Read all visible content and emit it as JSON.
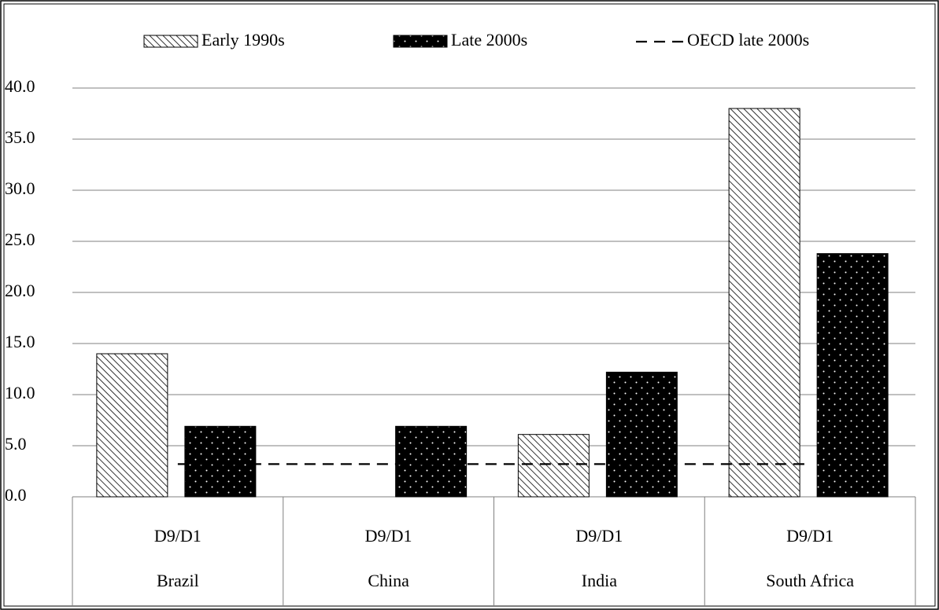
{
  "chart_data": {
    "type": "bar",
    "categories": [
      "Brazil",
      "China",
      "India",
      "South Africa"
    ],
    "subcategories": [
      "D9/D1",
      "D9/D1",
      "D9/D1",
      "D9/D1"
    ],
    "series": [
      {
        "name": "Early 1990s",
        "type": "bar",
        "pattern": "hatch",
        "color": "#000000",
        "values": [
          14.0,
          null,
          6.1,
          38.0
        ]
      },
      {
        "name": "Late 2000s",
        "type": "bar",
        "pattern": "dots",
        "color": "#000000",
        "values": [
          6.9,
          6.9,
          12.2,
          23.8
        ]
      },
      {
        "name": "OECD late 2000s",
        "type": "line",
        "dashed": true,
        "color": "#000000",
        "values": [
          3.2,
          3.2,
          3.2,
          3.2
        ]
      }
    ],
    "ylim": [
      0,
      40
    ],
    "yticks": [
      {
        "value": 0,
        "label": "0.0"
      },
      {
        "value": 5,
        "label": "5.0"
      },
      {
        "value": 10,
        "label": "10.0"
      },
      {
        "value": 15,
        "label": "15.0"
      },
      {
        "value": 20,
        "label": "20.0"
      },
      {
        "value": 25,
        "label": "25.0"
      },
      {
        "value": 30,
        "label": "30.0"
      },
      {
        "value": 35,
        "label": "35.0"
      },
      {
        "value": 40,
        "label": "40.0"
      }
    ],
    "grid": true,
    "legend": "top"
  }
}
